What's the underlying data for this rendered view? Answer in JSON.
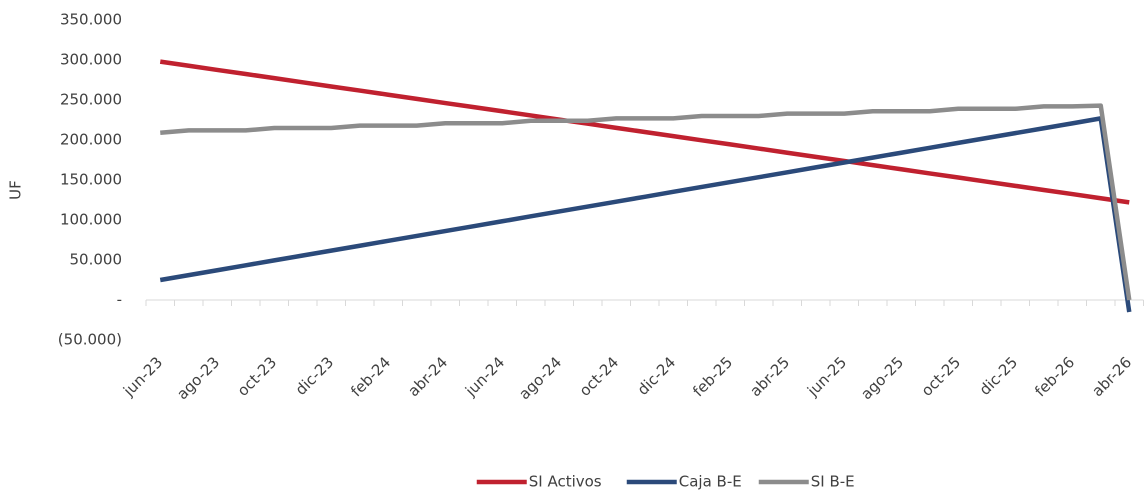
{
  "chart_data": {
    "type": "line",
    "y_label": "UF",
    "categories": [
      "jun-23",
      null,
      "ago-23",
      null,
      "oct-23",
      null,
      "dic-23",
      null,
      "feb-24",
      null,
      "abr-24",
      null,
      "jun-24",
      null,
      "ago-24",
      null,
      "oct-24",
      null,
      "dic-24",
      null,
      "feb-25",
      null,
      "abr-25",
      null,
      "jun-25",
      null,
      "ago-25",
      null,
      "oct-25",
      null,
      "dic-25",
      null,
      "feb-26",
      null,
      "abr-26"
    ],
    "series": [
      {
        "name": "SI Activos",
        "color": "#c0212f",
        "values": [
          298000,
          292800,
          287600,
          282500,
          277300,
          272100,
          266900,
          261800,
          256600,
          251400,
          246200,
          241100,
          235900,
          230700,
          225500,
          220400,
          215200,
          210000,
          204800,
          199600,
          194500,
          189300,
          184100,
          178900,
          173800,
          168600,
          163400,
          158200,
          153100,
          147900,
          142700,
          137500,
          132400,
          127200,
          122000
        ]
      },
      {
        "name": "Caja B-E",
        "color": "#2b4a7a",
        "values": [
          25000,
          31100,
          37200,
          43400,
          49500,
          55600,
          61700,
          67800,
          74000,
          80100,
          86200,
          92300,
          98400,
          104600,
          110700,
          116800,
          122900,
          129000,
          135200,
          141300,
          147400,
          153500,
          159600,
          165800,
          171900,
          178000,
          184100,
          190200,
          196400,
          202500,
          208600,
          214700,
          220800,
          227000,
          -15000
        ]
      },
      {
        "name": "SI B-E",
        "color": "#8c8c8c",
        "values": [
          209000,
          212000,
          212000,
          212000,
          215000,
          215000,
          215000,
          218000,
          218000,
          218000,
          221000,
          221000,
          221000,
          224000,
          224000,
          224000,
          227000,
          227000,
          227000,
          230000,
          230000,
          230000,
          233000,
          233000,
          233000,
          236000,
          236000,
          236000,
          239000,
          239000,
          239000,
          242000,
          242000,
          243000,
          0
        ]
      }
    ],
    "ylim": [
      -50000,
      350000
    ],
    "yticks": [
      {
        "value": -50000,
        "label": "(50.000)"
      },
      {
        "value": 0,
        "label": "-"
      },
      {
        "value": 50000,
        "label": "50.000"
      },
      {
        "value": 100000,
        "label": "100.000"
      },
      {
        "value": 150000,
        "label": "150.000"
      },
      {
        "value": 200000,
        "label": "200.000"
      },
      {
        "value": 250000,
        "label": "250.000"
      },
      {
        "value": 300000,
        "label": "300.000"
      },
      {
        "value": 350000,
        "label": "350.000"
      }
    ],
    "grid": false,
    "legend": "bottom"
  }
}
